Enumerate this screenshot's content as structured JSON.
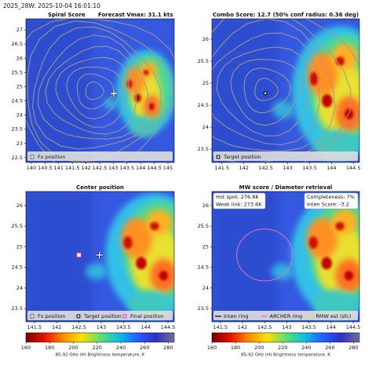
{
  "header": "2025_28W: 2025-10-04 16:01:10",
  "chart_data": [
    {
      "type": "image",
      "title": "Spiral Score",
      "subtitle": "Forecast Vmax: 31.1 kts",
      "xlim": [
        139.8,
        145.23
      ],
      "ylim": [
        22.33,
        27.39
      ],
      "xticks": [
        140,
        140.5,
        141,
        141.5,
        142,
        142.5,
        143,
        143.5,
        144,
        144.5,
        145
      ],
      "yticks": [
        22.5,
        23,
        23.5,
        24,
        24.5,
        25,
        25.5,
        26,
        26.5,
        27
      ],
      "legend": "bottom",
      "markers": [
        {
          "name": "Fx position",
          "symbol": "plus",
          "color": "#ffffff",
          "x": 143.02,
          "y": 24.76
        }
      ]
    },
    {
      "type": "image",
      "title": "Combo Score: 12.7  (50% conf radius: 0.36 deg)",
      "xlim": [
        141.27,
        144.64
      ],
      "ylim": [
        23.2,
        26.46
      ],
      "xticks": [
        141.5,
        142,
        142.5,
        143,
        143.5,
        144,
        144.5
      ],
      "yticks": [
        23.5,
        24,
        24.5,
        25,
        25.5,
        26
      ],
      "legend": "bottom",
      "markers": [
        {
          "name": "Target position",
          "symbol": "square",
          "color": "#000000",
          "x": 142.49,
          "y": 24.77
        }
      ]
    },
    {
      "type": "image",
      "title": "Center position",
      "xlim": [
        141.31,
        144.64
      ],
      "ylim": [
        23.18,
        26.34
      ],
      "xticks": [
        141.5,
        142,
        142.5,
        143,
        143.5,
        144,
        144.5
      ],
      "yticks": [
        23.5,
        24,
        24.5,
        25,
        25.5,
        26
      ],
      "legend": "bottom",
      "markers": [
        {
          "name": "Fx position",
          "symbol": "plus",
          "color": "#ffffff",
          "x": 142.96,
          "y": 24.8
        },
        {
          "name": "Target position",
          "symbol": "square",
          "color": "#000000",
          "x": 142.5,
          "y": 24.8
        },
        {
          "name": "Final position",
          "symbol": "square",
          "color": "#e020c0",
          "x": 142.5,
          "y": 24.8
        }
      ],
      "colorbar": {
        "label": "85-92 GHz (H) Brightness temperature, K",
        "lim": [
          160,
          285
        ],
        "ticks": [
          160,
          180,
          200,
          220,
          240,
          260,
          280
        ],
        "colors": [
          "#7a0000",
          "#e81000",
          "#ff8c00",
          "#ffe000",
          "#60e070",
          "#10c0e0",
          "#2060ff",
          "#3030c0",
          "#7070a0"
        ]
      }
    },
    {
      "type": "image",
      "title": "MW score / Diameter retrieval",
      "xlim": [
        141.31,
        144.64
      ],
      "ylim": [
        23.18,
        26.34
      ],
      "xticks": [
        141.5,
        142,
        142.5,
        143,
        143.5,
        144,
        144.5
      ],
      "yticks": [
        23.5,
        24,
        24.5,
        25,
        25.5,
        26
      ],
      "legend": "bottom",
      "annotations": [
        [
          "Hot spot: 276.8K",
          "Weak link: 273.6K"
        ],
        [
          "Completeness: 7%",
          "Inten Score: -3.2"
        ]
      ],
      "rings": [
        {
          "name": "Inten ring",
          "color": "#000000"
        },
        {
          "name": "ARCHER ring",
          "color": "#e070c0",
          "x": 142.5,
          "y": 24.8,
          "r": 0.63
        },
        {
          "name": "RMW est (sfc)",
          "color": "#e8e020"
        }
      ],
      "colorbar": {
        "label": "85-92 GHz (H) Brightness temperature, K",
        "lim": [
          160,
          285
        ],
        "ticks": [
          160,
          180,
          200,
          220,
          240,
          260,
          280
        ],
        "colors": [
          "#7a0000",
          "#e81000",
          "#ff8c00",
          "#ffe000",
          "#60e070",
          "#10c0e0",
          "#2060ff",
          "#3030c0",
          "#7070a0"
        ]
      }
    }
  ]
}
